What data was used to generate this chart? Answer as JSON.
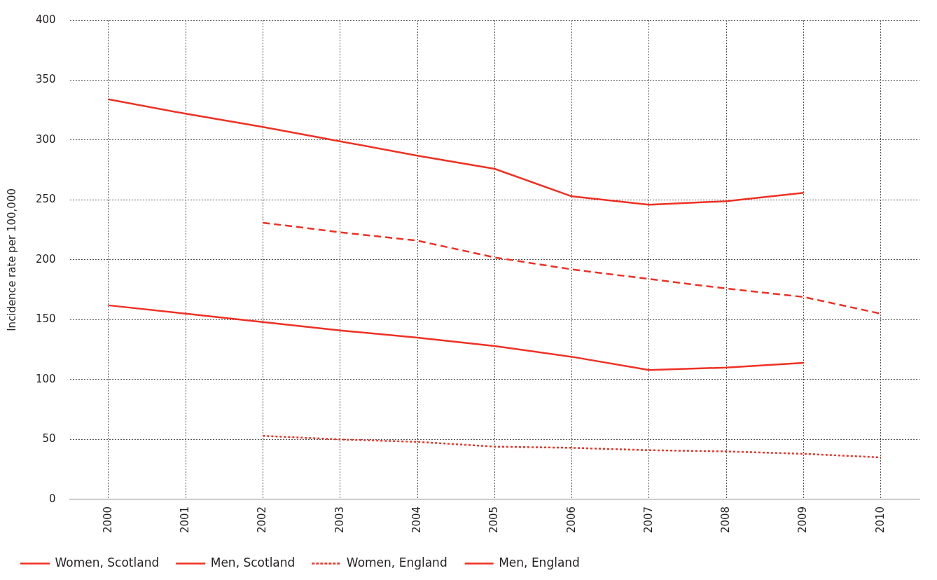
{
  "chart_data": {
    "type": "line",
    "ylabel": "Incidence rate per 100,000",
    "categories": [
      "2000",
      "2001",
      "2002",
      "2003",
      "2004",
      "2005",
      "2006",
      "2007",
      "2008",
      "2009",
      "2010"
    ],
    "series": [
      {
        "name": "Women, Scotland",
        "color": "#ee3124",
        "line_style": "solid",
        "values": [
          162,
          155,
          148,
          141,
          135,
          128,
          119,
          108,
          110,
          114,
          null
        ]
      },
      {
        "name": "Men, Scotland",
        "color": "#ee3124",
        "line_style": "solid",
        "values": [
          334,
          322,
          311,
          299,
          287,
          276,
          253,
          246,
          249,
          256,
          null
        ]
      },
      {
        "name": "Women, England",
        "color": "#ee3124",
        "line_style": "dotted",
        "values": [
          null,
          null,
          53,
          50,
          48,
          44,
          43,
          41,
          40,
          38,
          35
        ]
      },
      {
        "name": "Men, England",
        "color": "#ee3124",
        "line_style": "dashed",
        "values": [
          null,
          null,
          231,
          223,
          216,
          202,
          192,
          184,
          176,
          169,
          155
        ]
      }
    ],
    "ylim": [
      0,
      400
    ],
    "yticks": [
      0,
      50,
      100,
      150,
      200,
      250,
      300,
      350,
      400
    ],
    "grid": true,
    "legend": "bottom",
    "marker": "none"
  }
}
